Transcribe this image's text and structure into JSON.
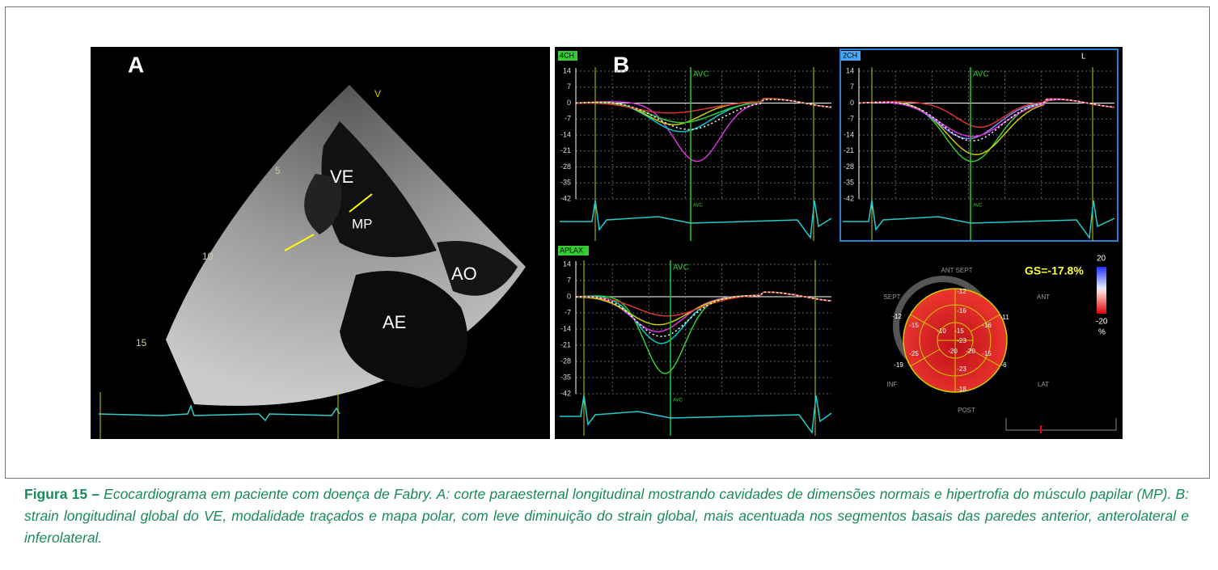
{
  "panel_a": {
    "label": "A",
    "labels": [
      "VE",
      "MP",
      "AO",
      "AE"
    ],
    "depth_marks": [
      "5",
      "10",
      "15"
    ],
    "marker": "V"
  },
  "panel_b": {
    "label": "B",
    "yticks": [
      14,
      7,
      0,
      -7,
      -14,
      -21,
      -28,
      -35,
      -42
    ],
    "graphs": [
      {
        "view": "4CH",
        "event": "AVC"
      },
      {
        "view": "2CH",
        "event": "AVC",
        "corner": "L"
      },
      {
        "view": "APLAX",
        "event": "AVC"
      }
    ],
    "polar_map": {
      "global_strain": "GS=-17.8%",
      "walls": [
        "ANT SEPT",
        "ANT",
        "LAT",
        "POST",
        "INF",
        "SEPT"
      ],
      "segments": [
        "-12",
        "-16",
        "-11",
        "-12",
        "-15",
        "-10",
        "-15",
        "-16",
        "-23",
        "-20",
        "-20",
        "-25",
        "-15",
        "-19",
        "-23",
        "-6",
        "-18"
      ],
      "scale": [
        "20",
        "-20",
        "%"
      ]
    }
  },
  "caption": {
    "label": "Figura 15 –",
    "text": "Ecocardiograma em paciente com doença de Fabry. A: corte paraesternal longitudinal mostrando cavidades de dimensões normais e hipertrofia do músculo papilar (MP). B: strain longitudinal global do VE, modalidade traçados e mapa polar, com leve diminuição do strain global, mais acentuada nos segmentos basais das paredes anterior, anterolateral e inferolateral."
  }
}
